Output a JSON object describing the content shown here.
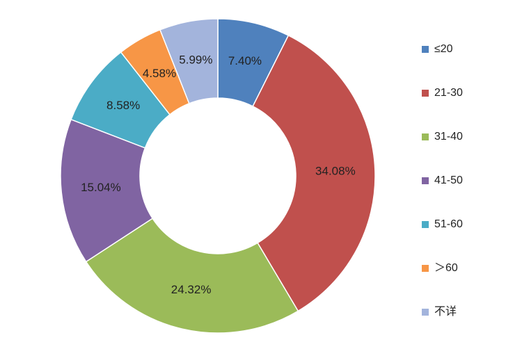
{
  "chart_data": {
    "type": "donut",
    "categories": [
      "≤20",
      "21-30",
      "31-40",
      "41-50",
      "51-60",
      "＞60",
      "不详"
    ],
    "values": [
      7.4,
      34.08,
      24.32,
      15.04,
      8.58,
      4.58,
      5.99
    ],
    "value_labels": [
      "7.40%",
      "34.08%",
      "24.32%",
      "15.04%",
      "8.58%",
      "4.58%",
      "5.99%"
    ],
    "colors": [
      "#4f81bd",
      "#c0504d",
      "#9bbb59",
      "#8064a2",
      "#4bacc6",
      "#f79646",
      "#a3b4dc"
    ],
    "legend": "right"
  }
}
